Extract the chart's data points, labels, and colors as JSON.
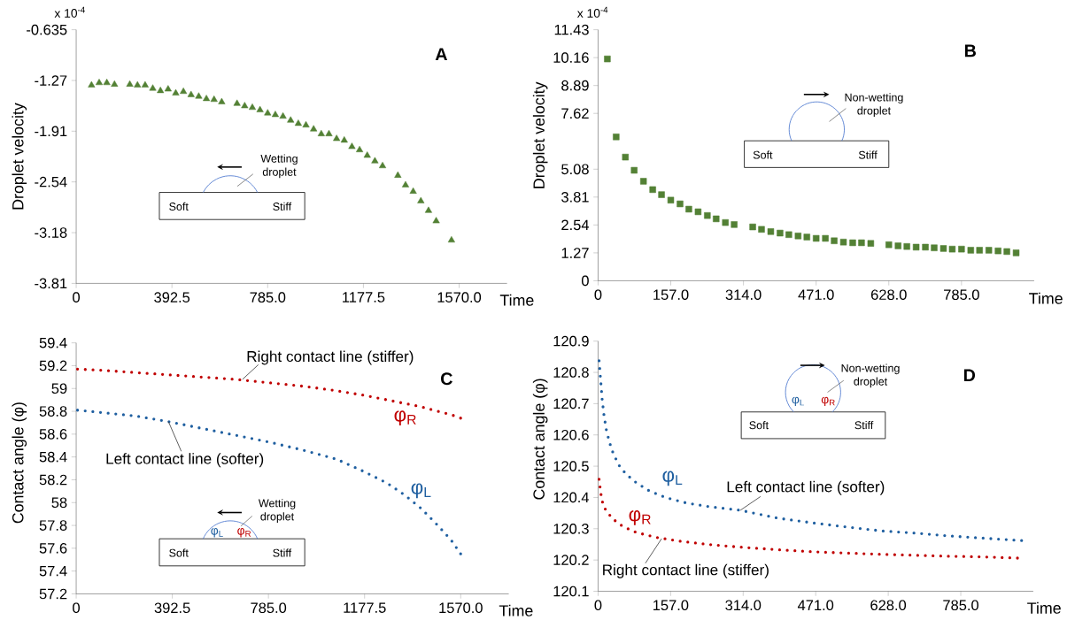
{
  "chart_data": [
    {
      "type": "scatter",
      "title": "A",
      "xlabel": "Time",
      "ylabel": "Droplet velocity",
      "marker": "triangle",
      "color": "#538135",
      "annotations": [
        "x 10$^{-4}$",
        "Wetting droplet",
        "Soft",
        "Stiff"
      ],
      "xlim": [
        0,
        1766.25
      ],
      "xticks": [
        0,
        392.5,
        {
          "value": 785,
          "label": "785.0"
        },
        {
          "value": 1177.5,
          "label": "1177.5"
        },
        {
          "value": 1570,
          "label": "1570.0"
        }
      ],
      "ylim": [
        -3.81,
        -0.635
      ],
      "yticks": [
        -0.635,
        -1.27,
        {
          "value": -1.905,
          "label": "-1.91"
        },
        -2.54,
        {
          "value": -3.175,
          "label": "-3.18"
        },
        -3.81
      ],
      "x": [
        62.8,
        94.2,
        125.6,
        157,
        219.8,
        251.2,
        282.6,
        314,
        345.4,
        376.8,
        408.2,
        439.6,
        471,
        502.4,
        533.8,
        565.2,
        596.6,
        659.4,
        690.8,
        722.2,
        753.6,
        785,
        816.4,
        847.8,
        879.2,
        910.6,
        942,
        973.4,
        1004.8,
        1036.2,
        1067.6,
        1099,
        1130.4,
        1161.8,
        1193.2,
        1224.6,
        1256,
        1318.8,
        1350.2,
        1381.6,
        1413,
        1444.4,
        1475.8,
        1538.6
      ],
      "values": [
        -1.33,
        -1.3,
        -1.3,
        -1.32,
        -1.32,
        -1.33,
        -1.33,
        -1.37,
        -1.4,
        -1.38,
        -1.43,
        -1.41,
        -1.45,
        -1.47,
        -1.5,
        -1.51,
        -1.54,
        -1.56,
        -1.59,
        -1.61,
        -1.64,
        -1.68,
        -1.7,
        -1.72,
        -1.77,
        -1.81,
        -1.83,
        -1.88,
        -1.94,
        -1.94,
        -2.0,
        -2.02,
        -2.1,
        -2.14,
        -2.21,
        -2.28,
        -2.34,
        -2.46,
        -2.58,
        -2.66,
        -2.78,
        -2.9,
        -3.03,
        -3.27
      ]
    },
    {
      "type": "scatter",
      "title": "B",
      "xlabel": "Time",
      "ylabel": "Droplet velocity",
      "marker": "square",
      "color": "#538135",
      "annotations": [
        "x 10$^{-4}$",
        "Non-wetting droplet",
        "Soft",
        "Stiff"
      ],
      "xlim": [
        0,
        942
      ],
      "xticks": [
        0,
        {
          "value": 157,
          "label": "157.0"
        },
        {
          "value": 314,
          "label": "314.0"
        },
        {
          "value": 471,
          "label": "471.0"
        },
        {
          "value": 628,
          "label": "628.0"
        },
        {
          "value": 785,
          "label": "785.0"
        }
      ],
      "ylim": [
        0,
        11.43
      ],
      "yticks": [
        0,
        1.27,
        2.54,
        3.81,
        5.08,
        7.62,
        8.89,
        10.16,
        11.43
      ],
      "x": [
        20,
        39,
        59,
        78,
        98,
        118,
        137,
        157,
        177,
        196,
        216,
        236,
        255,
        275,
        294,
        334,
        353,
        373,
        393,
        412,
        432,
        451,
        471,
        491,
        510,
        530,
        550,
        569,
        589,
        628,
        648,
        667,
        687,
        707,
        726,
        746,
        765,
        785,
        805,
        824,
        844,
        864,
        883,
        903
      ],
      "values": [
        10.1,
        6.55,
        5.63,
        5.03,
        4.53,
        4.15,
        3.92,
        3.67,
        3.5,
        3.26,
        3.14,
        2.97,
        2.82,
        2.65,
        2.56,
        2.45,
        2.34,
        2.24,
        2.17,
        2.1,
        2.04,
        1.99,
        1.93,
        1.93,
        1.82,
        1.76,
        1.73,
        1.73,
        1.7,
        1.64,
        1.59,
        1.56,
        1.53,
        1.53,
        1.5,
        1.47,
        1.44,
        1.44,
        1.39,
        1.39,
        1.39,
        1.36,
        1.33,
        1.27
      ]
    },
    {
      "type": "line",
      "title": "C",
      "xlabel": "Time",
      "ylabel": "Contact angle (φ)",
      "line_style": "dotted",
      "annotations": [
        "Wetting droplet",
        "Soft",
        "Stiff",
        "φ$_{L}$",
        "φ$_{R}$",
        {
          "text": "Right contact line (stiffer)",
          "x": 679,
          "y": 59.08
        },
        {
          "text": "Left contact line (softer)",
          "x": 376.7,
          "y": 58.71
        }
      ],
      "xlim": [
        0,
        1766.25
      ],
      "xticks": [
        0,
        392.5,
        {
          "value": 785,
          "label": "785.0"
        },
        {
          "value": 1177.5,
          "label": "1177.5"
        },
        {
          "value": 1570,
          "label": "1570.0"
        }
      ],
      "ylim": [
        57.2,
        59.4
      ],
      "yticks": [
        57.2,
        57.4,
        57.6,
        57.8,
        58,
        58.2,
        58.4,
        58.6,
        58.8,
        59,
        59.2,
        59.4
      ],
      "x": [
        5.5,
        101.7,
        239,
        376.7,
        514,
        651.7,
        789,
        926.6,
        1064,
        1177,
        1270,
        1339,
        1408,
        1476.5,
        1531.5,
        1570
      ],
      "series": [
        {
          "name": "φ$_{R}$",
          "color": "#c00000",
          "values": [
            59.17,
            59.16,
            59.14,
            59.12,
            59.1,
            59.08,
            59.05,
            59.02,
            58.98,
            58.94,
            58.9,
            58.87,
            58.84,
            58.8,
            58.77,
            58.74
          ]
        },
        {
          "name": "φ$_{L}$",
          "color": "#1f5fa0",
          "values": [
            58.81,
            58.79,
            58.76,
            58.71,
            58.65,
            58.59,
            58.53,
            58.46,
            58.38,
            58.27,
            58.17,
            58.07,
            57.95,
            57.8,
            57.67,
            57.55
          ]
        }
      ]
    },
    {
      "type": "line",
      "title": "D",
      "xlabel": "Time",
      "ylabel": "Contact angle (φ)",
      "line_style": "dotted",
      "annotations": [
        "Non-wetting droplet",
        "Soft",
        "Stiff",
        "φ$_{L}$",
        "φ$_{R}$",
        {
          "text": "Left contact line (softer)",
          "x": 308,
          "y": 120.359
        },
        {
          "text": "Right contact line (stiffer)",
          "x": 137.4,
          "y": 120.268
        }
      ],
      "xlim": [
        0,
        942
      ],
      "xticks": [
        0,
        {
          "value": 157,
          "label": "157.0"
        },
        {
          "value": 314,
          "label": "314.0"
        },
        {
          "value": 471,
          "label": "471.0"
        },
        {
          "value": 628,
          "label": "628.0"
        },
        {
          "value": 785,
          "label": "785.0"
        }
      ],
      "ylim": [
        120.1,
        120.9
      ],
      "yticks": [
        120.1,
        120.2,
        120.3,
        120.4,
        120.5,
        120.6,
        120.7,
        120.8,
        120.9
      ],
      "series": [
        {
          "name": "φ$_{L}$",
          "color": "#1f5fa0",
          "x": [
            2.2,
            4.4,
            6.5,
            8.7,
            12.4,
            17.4,
            24.7,
            33.4,
            46.5,
            61,
            82.9,
            112,
            148,
            192,
            243,
            308,
            388,
            468,
            541,
            613.5,
            686,
            759,
            831.6,
            917
          ],
          "values": [
            120.837,
            120.796,
            120.758,
            120.715,
            120.667,
            120.619,
            120.576,
            120.538,
            120.5,
            120.474,
            120.447,
            120.42,
            120.399,
            120.382,
            120.37,
            120.359,
            120.334,
            120.318,
            120.305,
            120.293,
            120.286,
            120.277,
            120.27,
            120.262
          ]
        },
        {
          "name": "φ$_{R}$",
          "color": "#c00000",
          "x": [
            2.2,
            4.4,
            7.3,
            11.6,
            21.1,
            35.6,
            53.8,
            82.9,
            126.5,
            177.4,
            243,
            308,
            388,
            468,
            541,
            613.5,
            686,
            759,
            831.6,
            908
          ],
          "values": [
            120.458,
            120.431,
            120.399,
            120.372,
            120.35,
            120.327,
            120.307,
            120.288,
            120.272,
            120.26,
            120.249,
            120.241,
            120.233,
            120.226,
            120.222,
            120.218,
            120.215,
            120.212,
            120.21,
            120.206
          ]
        }
      ]
    }
  ]
}
